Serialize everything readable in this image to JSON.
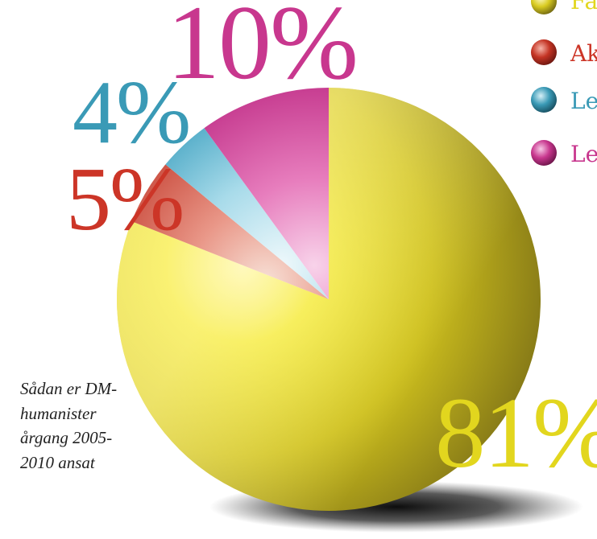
{
  "chart_data": {
    "type": "pie",
    "slices": [
      {
        "label": "Fa",
        "value": 81,
        "display": "81%",
        "color": "#e2d61e"
      },
      {
        "label": "Ak",
        "value": 5,
        "display": "5%",
        "color": "#cc3527"
      },
      {
        "label": "Le",
        "value": 4,
        "display": "4%",
        "color": "#3a9ab6"
      },
      {
        "label": "Le",
        "value": 10,
        "display": "10%",
        "color": "#c8378e"
      }
    ],
    "legend": {
      "position": "top-right"
    }
  },
  "caption": {
    "lines": [
      "Sådan er DM-",
      "humanister",
      "årgang 2005-",
      "2010 ansat"
    ]
  },
  "colors": {
    "yellow": "#e2d61e",
    "red": "#cc3527",
    "blue": "#3a9ab6",
    "magenta": "#c8378e"
  }
}
